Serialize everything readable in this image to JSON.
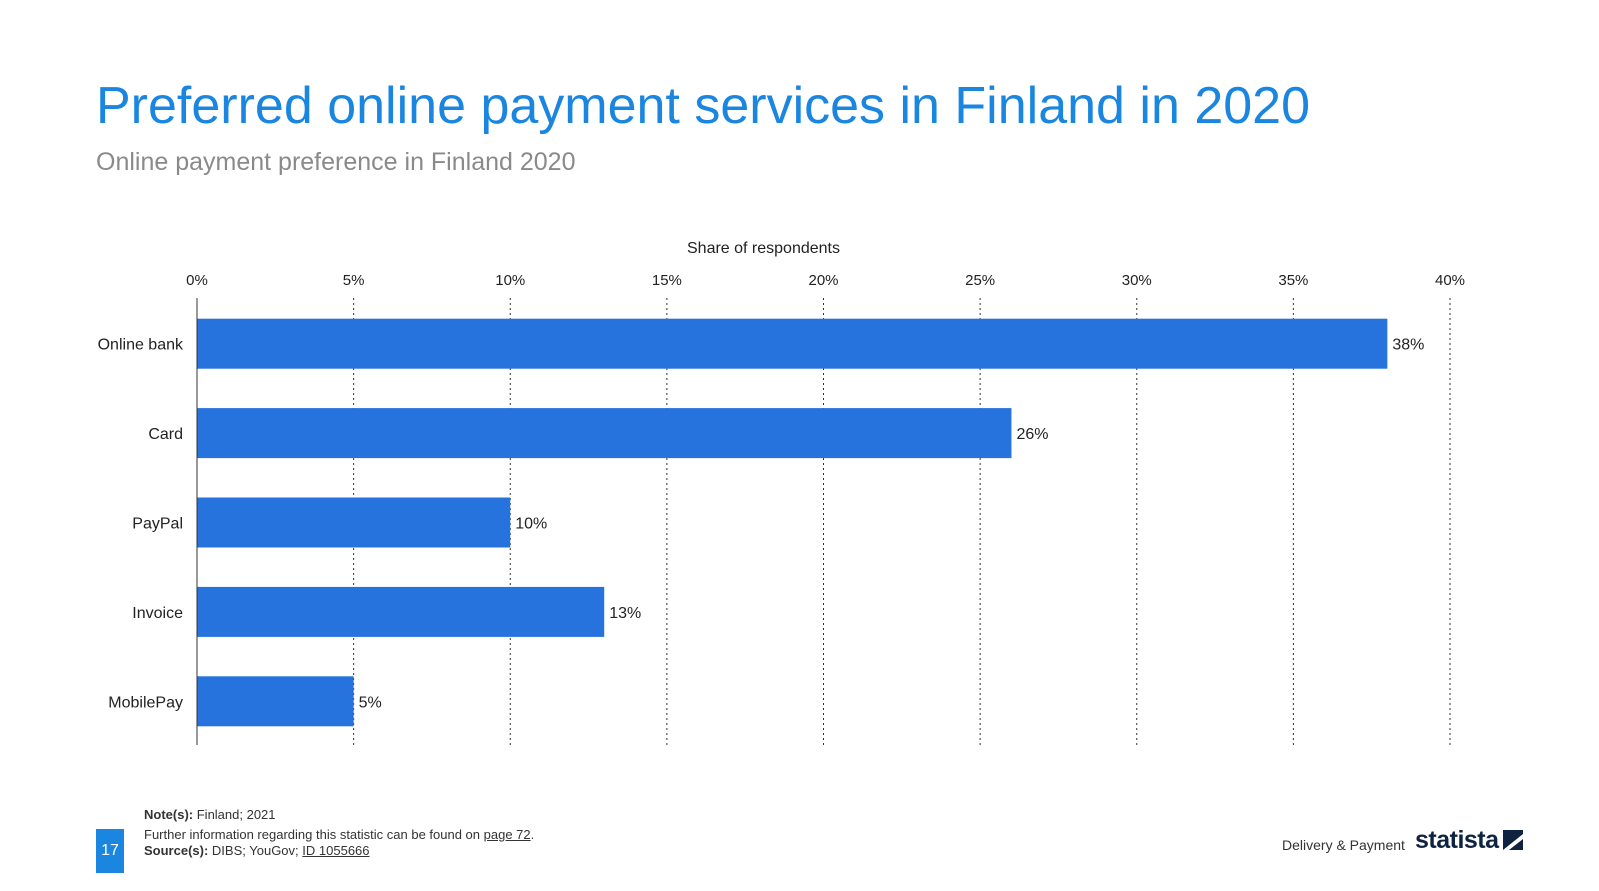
{
  "header": {
    "title": "Preferred online payment services in Finland in 2020",
    "subtitle": "Online payment preference in Finland 2020"
  },
  "chart_data": {
    "type": "bar",
    "orientation": "horizontal",
    "xlabel": "Share of respondents",
    "categories": [
      "Online bank",
      "Card",
      "PayPal",
      "Invoice",
      "MobilePay"
    ],
    "values": [
      38,
      26,
      10,
      13,
      5
    ],
    "data_labels": [
      "38%",
      "26%",
      "10%",
      "13%",
      "5%"
    ],
    "xlim": [
      0,
      40
    ],
    "ticks": [
      0,
      5,
      10,
      15,
      20,
      25,
      30,
      35,
      40
    ],
    "tick_labels": [
      "0%",
      "5%",
      "10%",
      "15%",
      "20%",
      "25%",
      "30%",
      "35%",
      "40%"
    ],
    "grid": "vertical dotted",
    "bar_color": "#2673dd"
  },
  "footer": {
    "note_label": "Note(s):",
    "note": "Finland; 2021",
    "further": "Further information regarding this statistic can be found on",
    "further_link": "page 72",
    "source_label": "Source(s):",
    "source": "DIBS; YouGov;",
    "source_link": "ID 1055666",
    "page_number": "17",
    "category": "Delivery & Payment",
    "logo": "statista"
  }
}
